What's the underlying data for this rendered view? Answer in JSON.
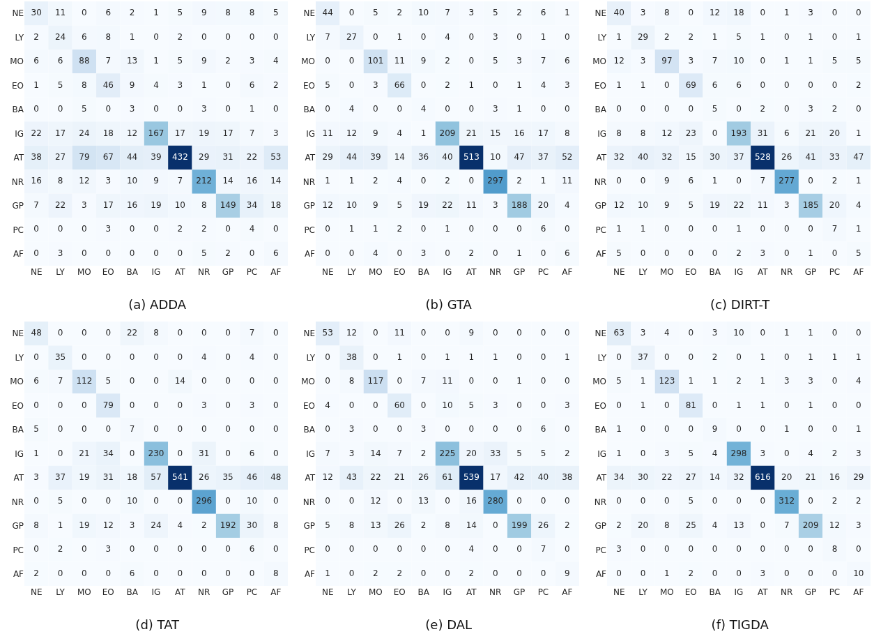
{
  "chart_data": [
    {
      "type": "heatmap",
      "data_labels": true,
      "title": "(a) ADDA",
      "categories": [
        "NE",
        "LY",
        "MO",
        "EO",
        "BA",
        "IG",
        "AT",
        "NR",
        "GP",
        "PC",
        "AF"
      ],
      "y_categories": [
        "NE",
        "LY",
        "MO",
        "EO",
        "BA",
        "IG",
        "AT",
        "NR",
        "GP",
        "PC",
        "AF"
      ],
      "cells": [
        [
          30,
          11,
          0,
          6,
          2,
          1,
          5,
          9,
          8,
          8,
          5
        ],
        [
          2,
          24,
          6,
          8,
          1,
          0,
          2,
          0,
          0,
          0,
          0
        ],
        [
          6,
          6,
          88,
          7,
          13,
          1,
          5,
          9,
          2,
          3,
          4
        ],
        [
          1,
          5,
          8,
          46,
          9,
          4,
          3,
          1,
          0,
          6,
          2
        ],
        [
          0,
          0,
          5,
          0,
          3,
          0,
          0,
          3,
          0,
          1,
          0
        ],
        [
          22,
          17,
          24,
          18,
          12,
          167,
          17,
          19,
          17,
          7,
          3
        ],
        [
          38,
          27,
          79,
          67,
          44,
          39,
          432,
          29,
          31,
          22,
          53
        ],
        [
          16,
          8,
          12,
          3,
          10,
          9,
          7,
          212,
          14,
          16,
          14
        ],
        [
          7,
          22,
          3,
          17,
          16,
          19,
          10,
          8,
          149,
          34,
          18
        ],
        [
          0,
          0,
          0,
          3,
          0,
          0,
          2,
          2,
          0,
          4,
          0
        ],
        [
          0,
          3,
          0,
          0,
          0,
          0,
          0,
          5,
          2,
          0,
          6
        ]
      ]
    },
    {
      "type": "heatmap",
      "data_labels": true,
      "title": "(b) GTA",
      "categories": [
        "NE",
        "LY",
        "MO",
        "EO",
        "BA",
        "IG",
        "AT",
        "NR",
        "GP",
        "PC",
        "AF"
      ],
      "y_categories": [
        "NE",
        "LY",
        "MO",
        "EO",
        "BA",
        "IG",
        "AT",
        "NR",
        "GP",
        "PC",
        "AF"
      ],
      "cells": [
        [
          44,
          0,
          5,
          2,
          10,
          7,
          3,
          5,
          2,
          6,
          1
        ],
        [
          7,
          27,
          0,
          1,
          0,
          4,
          0,
          3,
          0,
          1,
          0
        ],
        [
          0,
          0,
          101,
          11,
          9,
          2,
          0,
          5,
          3,
          7,
          6
        ],
        [
          5,
          0,
          3,
          66,
          0,
          2,
          1,
          0,
          1,
          4,
          3
        ],
        [
          0,
          4,
          0,
          0,
          4,
          0,
          0,
          3,
          1,
          0,
          0
        ],
        [
          11,
          12,
          9,
          4,
          1,
          209,
          21,
          15,
          16,
          17,
          8
        ],
        [
          29,
          44,
          39,
          14,
          36,
          40,
          513,
          10,
          47,
          37,
          52
        ],
        [
          1,
          1,
          2,
          4,
          0,
          2,
          0,
          297,
          2,
          1,
          11
        ],
        [
          12,
          10,
          9,
          5,
          19,
          22,
          11,
          3,
          188,
          20,
          4
        ],
        [
          0,
          1,
          1,
          2,
          0,
          1,
          0,
          0,
          0,
          6,
          0
        ],
        [
          0,
          0,
          4,
          0,
          3,
          0,
          2,
          0,
          1,
          0,
          6
        ]
      ]
    },
    {
      "type": "heatmap",
      "data_labels": true,
      "title": "(c) DIRT-T",
      "categories": [
        "NE",
        "LY",
        "MO",
        "EO",
        "BA",
        "IG",
        "AT",
        "NR",
        "GP",
        "PC",
        "AF"
      ],
      "y_categories": [
        "NE",
        "LY",
        "MO",
        "EO",
        "BA",
        "IG",
        "AT",
        "NR",
        "GP",
        "PC",
        "AF"
      ],
      "cells": [
        [
          40,
          3,
          8,
          0,
          12,
          18,
          0,
          1,
          3,
          0,
          0
        ],
        [
          1,
          29,
          2,
          2,
          1,
          5,
          1,
          0,
          1,
          0,
          1
        ],
        [
          12,
          3,
          97,
          3,
          7,
          10,
          0,
          1,
          1,
          5,
          5
        ],
        [
          1,
          1,
          0,
          69,
          6,
          6,
          0,
          0,
          0,
          0,
          2
        ],
        [
          0,
          0,
          0,
          0,
          5,
          0,
          2,
          0,
          3,
          2,
          0
        ],
        [
          8,
          8,
          12,
          23,
          0,
          193,
          31,
          6,
          21,
          20,
          1
        ],
        [
          32,
          40,
          32,
          15,
          30,
          37,
          528,
          26,
          41,
          33,
          47
        ],
        [
          0,
          0,
          9,
          6,
          1,
          0,
          7,
          277,
          0,
          2,
          1
        ],
        [
          12,
          10,
          9,
          5,
          19,
          22,
          11,
          3,
          185,
          20,
          4
        ],
        [
          1,
          1,
          0,
          0,
          0,
          1,
          0,
          0,
          0,
          7,
          1
        ],
        [
          5,
          0,
          0,
          0,
          0,
          2,
          3,
          0,
          1,
          0,
          5
        ]
      ]
    },
    {
      "type": "heatmap",
      "data_labels": true,
      "title": "(d) TAT",
      "categories": [
        "NE",
        "LY",
        "MO",
        "EO",
        "BA",
        "IG",
        "AT",
        "NR",
        "GP",
        "PC",
        "AF"
      ],
      "y_categories": [
        "NE",
        "LY",
        "MO",
        "EO",
        "BA",
        "IG",
        "AT",
        "NR",
        "GP",
        "PC",
        "AF"
      ],
      "cells": [
        [
          48,
          0,
          0,
          0,
          22,
          8,
          0,
          0,
          0,
          7,
          0
        ],
        [
          0,
          35,
          0,
          0,
          0,
          0,
          0,
          4,
          0,
          4,
          0
        ],
        [
          6,
          7,
          112,
          5,
          0,
          0,
          14,
          0,
          0,
          0,
          0
        ],
        [
          0,
          0,
          0,
          79,
          0,
          0,
          0,
          3,
          0,
          3,
          0
        ],
        [
          5,
          0,
          0,
          0,
          7,
          0,
          0,
          0,
          0,
          0,
          0
        ],
        [
          1,
          0,
          21,
          34,
          0,
          230,
          0,
          31,
          0,
          6,
          0
        ],
        [
          3,
          37,
          19,
          31,
          18,
          57,
          541,
          26,
          35,
          46,
          48
        ],
        [
          0,
          5,
          0,
          0,
          10,
          0,
          0,
          296,
          0,
          10,
          0
        ],
        [
          8,
          1,
          19,
          12,
          3,
          24,
          4,
          2,
          192,
          30,
          8
        ],
        [
          0,
          2,
          0,
          3,
          0,
          0,
          0,
          0,
          0,
          6,
          0
        ],
        [
          2,
          0,
          0,
          0,
          6,
          0,
          0,
          0,
          0,
          0,
          8
        ]
      ]
    },
    {
      "type": "heatmap",
      "data_labels": true,
      "title": "(e) DAL",
      "categories": [
        "NE",
        "LY",
        "MO",
        "EO",
        "BA",
        "IG",
        "AT",
        "NR",
        "GP",
        "PC",
        "AF"
      ],
      "y_categories": [
        "NE",
        "LY",
        "MO",
        "EO",
        "BA",
        "IG",
        "AT",
        "NR",
        "GP",
        "PC",
        "AF"
      ],
      "cells": [
        [
          53,
          12,
          0,
          11,
          0,
          0,
          9,
          0,
          0,
          0,
          0
        ],
        [
          0,
          38,
          0,
          1,
          0,
          1,
          1,
          1,
          0,
          0,
          1
        ],
        [
          0,
          8,
          117,
          0,
          7,
          11,
          0,
          0,
          1,
          0,
          0
        ],
        [
          4,
          0,
          0,
          60,
          0,
          10,
          5,
          3,
          0,
          0,
          3
        ],
        [
          0,
          3,
          0,
          0,
          3,
          0,
          0,
          0,
          0,
          6,
          0
        ],
        [
          7,
          3,
          14,
          7,
          2,
          225,
          20,
          33,
          5,
          5,
          2
        ],
        [
          12,
          43,
          22,
          21,
          26,
          61,
          539,
          17,
          42,
          40,
          38
        ],
        [
          0,
          0,
          12,
          0,
          13,
          0,
          16,
          280,
          0,
          0,
          0
        ],
        [
          5,
          8,
          13,
          26,
          2,
          8,
          14,
          0,
          199,
          26,
          2
        ],
        [
          0,
          0,
          0,
          0,
          0,
          0,
          4,
          0,
          0,
          7,
          0
        ],
        [
          1,
          0,
          2,
          2,
          0,
          0,
          2,
          0,
          0,
          0,
          9
        ]
      ]
    },
    {
      "type": "heatmap",
      "data_labels": true,
      "title": "(f) TIGDA",
      "categories": [
        "NE",
        "LY",
        "MO",
        "EO",
        "BA",
        "IG",
        "AT",
        "NR",
        "GP",
        "PC",
        "AF"
      ],
      "y_categories": [
        "NE",
        "LY",
        "MO",
        "EO",
        "BA",
        "IG",
        "AT",
        "NR",
        "GP",
        "PC",
        "AF"
      ],
      "cells": [
        [
          63,
          3,
          4,
          0,
          3,
          10,
          0,
          1,
          1,
          0,
          0
        ],
        [
          0,
          37,
          0,
          0,
          2,
          0,
          1,
          0,
          1,
          1,
          1
        ],
        [
          5,
          1,
          123,
          1,
          1,
          2,
          1,
          3,
          3,
          0,
          4
        ],
        [
          0,
          1,
          0,
          81,
          0,
          1,
          1,
          0,
          1,
          0,
          0
        ],
        [
          1,
          0,
          0,
          0,
          9,
          0,
          0,
          1,
          0,
          0,
          1
        ],
        [
          1,
          0,
          3,
          5,
          4,
          298,
          3,
          0,
          4,
          2,
          3
        ],
        [
          34,
          30,
          22,
          27,
          14,
          32,
          616,
          20,
          21,
          16,
          29
        ],
        [
          0,
          0,
          0,
          5,
          0,
          0,
          0,
          312,
          0,
          2,
          2
        ],
        [
          2,
          20,
          8,
          25,
          4,
          13,
          0,
          7,
          209,
          12,
          3
        ],
        [
          3,
          0,
          0,
          0,
          0,
          0,
          0,
          0,
          0,
          8,
          0
        ],
        [
          0,
          0,
          1,
          2,
          0,
          0,
          3,
          0,
          0,
          0,
          10
        ]
      ]
    }
  ]
}
